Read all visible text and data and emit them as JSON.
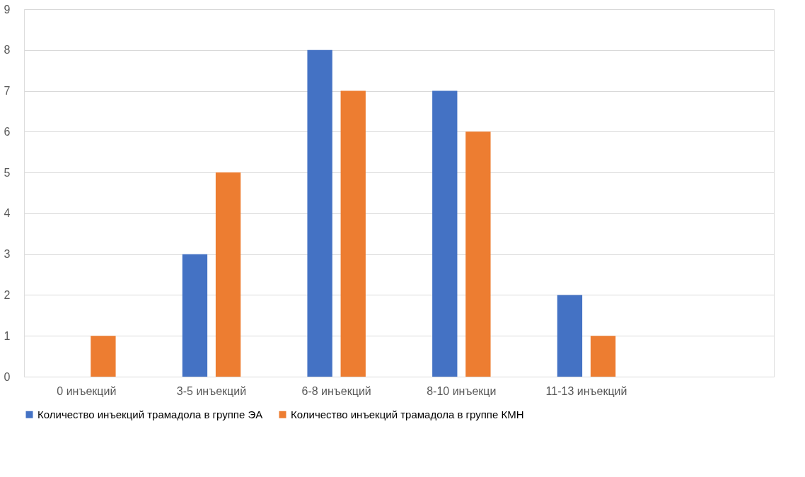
{
  "chart_data": {
    "type": "bar",
    "categories": [
      "0 инъекций",
      "3-5 инъекций",
      "6-8 инъекций",
      "8-10 инъекци",
      "11-13 инъекций",
      null
    ],
    "series": [
      {
        "name": "Количество инъекций трамадола в группе ЭА",
        "color": "#4472c4",
        "values": [
          null,
          3,
          8,
          7,
          2,
          null
        ]
      },
      {
        "name": "Количество инъекций трамадола в группе КМН",
        "color": "#ed7d31",
        "values": [
          1,
          5,
          7,
          6,
          1,
          null
        ]
      }
    ],
    "ylim": [
      0,
      9
    ],
    "yticks": [
      0,
      1,
      2,
      3,
      4,
      5,
      6,
      7,
      8,
      9
    ],
    "grid": "y",
    "legend": "bottom"
  }
}
